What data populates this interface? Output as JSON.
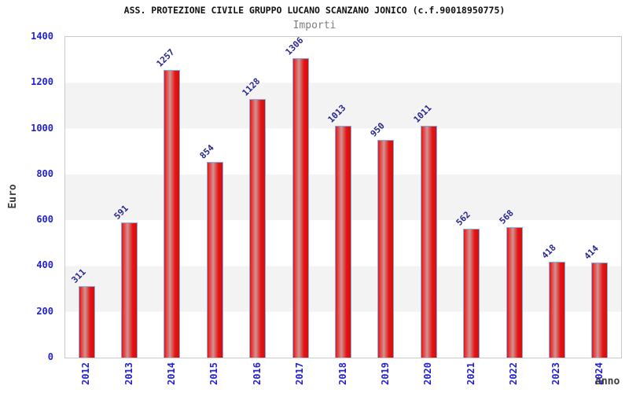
{
  "header": {
    "title": "ASS. PROTEZIONE CIVILE GRUPPO LUCANO SCANZANO JONICO (c.f.90018950775)",
    "subtitle": "Importi"
  },
  "chart_data": {
    "type": "bar",
    "title": "ASS. PROTEZIONE CIVILE GRUPPO LUCANO SCANZANO JONICO (c.f.90018950775)",
    "subtitle": "Importi",
    "xlabel": "anno",
    "ylabel": "Euro",
    "categories": [
      "2012",
      "2013",
      "2014",
      "2015",
      "2016",
      "2017",
      "2018",
      "2019",
      "2020",
      "2021",
      "2022",
      "2023",
      "2024"
    ],
    "values": [
      311,
      591,
      1257,
      854,
      1128,
      1306,
      1013,
      950,
      1011,
      562,
      568,
      418,
      414
    ],
    "ylim": [
      0,
      1400
    ],
    "yticks": [
      0,
      200,
      400,
      600,
      800,
      1000,
      1200,
      1400
    ],
    "grid": "alternating-horizontal-bands",
    "legend_position": "none",
    "bar_labels_rotation_deg": -45,
    "xtick_rotation_deg": -90
  },
  "colors": {
    "bar_red": "#e51414",
    "bar_red_dark": "#d40e0e",
    "bar_highlight": "#cf9494",
    "bar_border": "#7fb0e6",
    "tick_blue": "#2222cc",
    "value_blue": "#26268e",
    "band_gray": "#f3f3f3",
    "frame_gray": "#c9c9c9",
    "title_black": "#111111",
    "subtitle_gray": "#7d7d7d",
    "axis_label_gray": "#3c3c3c",
    "background": "#ffffff"
  }
}
